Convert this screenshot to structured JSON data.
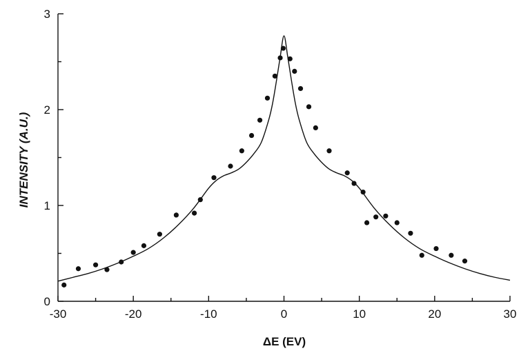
{
  "chart_data": {
    "type": "scatter",
    "title": "",
    "xlabel": "ΔE (EV)",
    "ylabel": "INTENSITY (A.U.)",
    "xlim": [
      -30,
      30
    ],
    "ylim": [
      0,
      3
    ],
    "xticks": [
      "-30",
      "-20",
      "-10",
      "0",
      "10",
      "20",
      "30"
    ],
    "yticks": [
      "0",
      "1",
      "2",
      "3"
    ],
    "grid": false,
    "legend": "none",
    "series": [
      {
        "kind": "points",
        "x": [
          -29.2,
          -27.3,
          -25.0,
          -23.5,
          -21.6,
          -20.0,
          -18.6,
          -16.5,
          -14.3,
          -11.9,
          -11.1,
          -9.3,
          -7.1,
          -5.6,
          -4.3,
          -3.2,
          -2.2,
          -1.2,
          -0.5,
          -0.1,
          0.8,
          1.4,
          2.2,
          3.3,
          4.2,
          6.0,
          8.4,
          9.3,
          10.5,
          11.0,
          12.2,
          13.5,
          15.0,
          16.8,
          18.3,
          20.2,
          22.2,
          24.0
        ],
        "y": [
          0.17,
          0.34,
          0.38,
          0.33,
          0.41,
          0.51,
          0.58,
          0.7,
          0.9,
          0.92,
          1.06,
          1.29,
          1.41,
          1.57,
          1.73,
          1.89,
          2.12,
          2.35,
          2.54,
          2.64,
          2.53,
          2.4,
          2.22,
          2.03,
          1.81,
          1.57,
          1.34,
          1.23,
          1.14,
          0.82,
          0.88,
          0.89,
          0.82,
          0.71,
          0.48,
          0.55,
          0.48,
          0.42
        ]
      },
      {
        "kind": "line",
        "x": [
          -30,
          -28,
          -26,
          -24,
          -22,
          -20,
          -18,
          -16,
          -14,
          -12,
          -10,
          -9,
          -8,
          -7,
          -6,
          -5,
          -4,
          -3,
          -2,
          -1.5,
          -1,
          -0.5,
          0,
          0.5,
          1,
          1.5,
          2,
          3,
          4,
          5,
          6,
          7,
          8,
          9,
          10,
          12,
          14,
          16,
          18,
          20,
          22,
          24,
          26,
          28,
          30
        ],
        "y": [
          0.21,
          0.25,
          0.29,
          0.34,
          0.4,
          0.47,
          0.55,
          0.66,
          0.8,
          0.97,
          1.18,
          1.26,
          1.31,
          1.34,
          1.38,
          1.45,
          1.54,
          1.66,
          1.9,
          2.07,
          2.3,
          2.55,
          2.77,
          2.55,
          2.3,
          2.07,
          1.9,
          1.66,
          1.54,
          1.45,
          1.38,
          1.34,
          1.31,
          1.26,
          1.18,
          0.97,
          0.8,
          0.66,
          0.55,
          0.47,
          0.4,
          0.34,
          0.29,
          0.25,
          0.22
        ]
      }
    ]
  }
}
